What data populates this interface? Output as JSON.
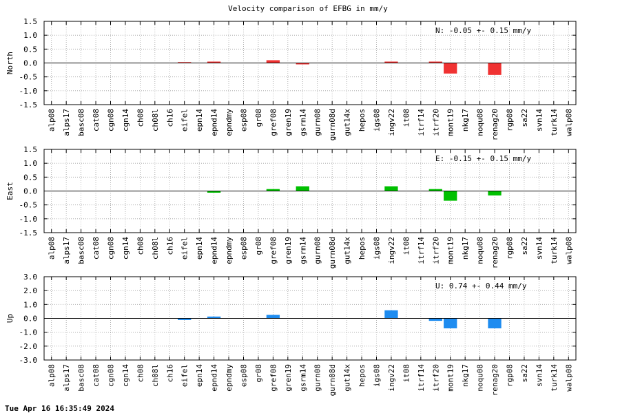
{
  "title": "Velocity comparison of EFBG in mm/y",
  "timestamp": "Tue Apr 16 16:35:49 2024",
  "chart_data": [
    {
      "type": "bar",
      "ylabel": "North",
      "annotation": "N:  -0.05 +-  0.15 mm/y",
      "color": "#f03232",
      "ylim": [
        -1.5,
        1.5
      ],
      "yticks": [
        "1.5",
        "1.0",
        "0.5",
        "0.0",
        "-0.5",
        "-1.0",
        "-1.5"
      ],
      "yticks_values": [
        1.5,
        1.0,
        0.5,
        0.0,
        -0.5,
        -1.0,
        -1.5
      ],
      "grid": true,
      "categories": [
        "alp08",
        "alps17",
        "basc08",
        "cat08",
        "cgn08",
        "cgn14",
        "ch08",
        "ch08l",
        "ch16",
        "eifel",
        "epn14",
        "epnd14",
        "epndmy",
        "esp08",
        "gr08",
        "gref08",
        "gren19",
        "gsrm14",
        "gurn08",
        "gurn08d",
        "gut14x",
        "hepos",
        "igs08",
        "ingv22",
        "it08",
        "itrf14",
        "itrf20",
        "mont19",
        "nkg17",
        "noqu08",
        "renag20",
        "rgp08",
        "sa22",
        "svn14",
        "turk14",
        "walp08"
      ],
      "values": [
        0,
        0,
        0,
        0,
        0,
        0,
        0,
        0,
        0,
        0.03,
        0,
        0.05,
        0,
        0,
        0,
        0.1,
        0,
        -0.05,
        0,
        0,
        0,
        0,
        0,
        0.05,
        0,
        0,
        0.05,
        -0.38,
        0,
        0,
        -0.43,
        0,
        0,
        0,
        0,
        0
      ]
    },
    {
      "type": "bar",
      "ylabel": "East",
      "annotation": "E:  -0.15 +-  0.15 mm/y",
      "color": "#00c000",
      "ylim": [
        -1.5,
        1.5
      ],
      "yticks": [
        "1.5",
        "1.0",
        "0.5",
        "0.0",
        "-0.5",
        "-1.0",
        "-1.5"
      ],
      "yticks_values": [
        1.5,
        1.0,
        0.5,
        0.0,
        -0.5,
        -1.0,
        -1.5
      ],
      "grid": true,
      "categories": [
        "alp08",
        "alps17",
        "basc08",
        "cat08",
        "cgn08",
        "cgn14",
        "ch08",
        "ch08l",
        "ch16",
        "eifel",
        "epn14",
        "epnd14",
        "epndmy",
        "esp08",
        "gr08",
        "gref08",
        "gren19",
        "gsrm14",
        "gurn08",
        "gurn08d",
        "gut14x",
        "hepos",
        "igs08",
        "ingv22",
        "it08",
        "itrf14",
        "itrf20",
        "mont19",
        "nkg17",
        "noqu08",
        "renag20",
        "rgp08",
        "sa22",
        "svn14",
        "turk14",
        "walp08"
      ],
      "values": [
        0,
        0,
        0,
        0,
        0,
        0,
        0,
        0,
        0,
        0,
        0,
        -0.06,
        0,
        0,
        0,
        0.07,
        0,
        0.17,
        0,
        0,
        0,
        0,
        0,
        0.17,
        0,
        0,
        0.07,
        -0.35,
        0,
        0,
        -0.16,
        0,
        0,
        0,
        0,
        0
      ]
    },
    {
      "type": "bar",
      "ylabel": "Up",
      "annotation": "U:   0.74 +-  0.44 mm/y",
      "color": "#1e8cf0",
      "ylim": [
        -3.0,
        3.0
      ],
      "yticks": [
        "3.0",
        "2.0",
        "1.0",
        "0.0",
        "-1.0",
        "-2.0",
        "-3.0"
      ],
      "yticks_values": [
        3.0,
        2.0,
        1.0,
        0.0,
        -1.0,
        -2.0,
        -3.0
      ],
      "grid": true,
      "categories": [
        "alp08",
        "alps17",
        "basc08",
        "cat08",
        "cgn08",
        "cgn14",
        "ch08",
        "ch08l",
        "ch16",
        "eifel",
        "epn14",
        "epnd14",
        "epndmy",
        "esp08",
        "gr08",
        "gref08",
        "gren19",
        "gsrm14",
        "gurn08",
        "gurn08d",
        "gut14x",
        "hepos",
        "igs08",
        "ingv22",
        "it08",
        "itrf14",
        "itrf20",
        "mont19",
        "nkg17",
        "noqu08",
        "renag20",
        "rgp08",
        "sa22",
        "svn14",
        "turk14",
        "walp08"
      ],
      "values": [
        0,
        0,
        0,
        0,
        0,
        0,
        0,
        0,
        0,
        -0.12,
        0,
        0.13,
        0,
        0,
        0,
        0.25,
        0,
        0,
        0,
        0,
        0,
        0,
        0,
        0.58,
        0,
        0,
        -0.18,
        -0.72,
        0,
        0,
        -0.72,
        0,
        0,
        0,
        0,
        0
      ]
    }
  ]
}
